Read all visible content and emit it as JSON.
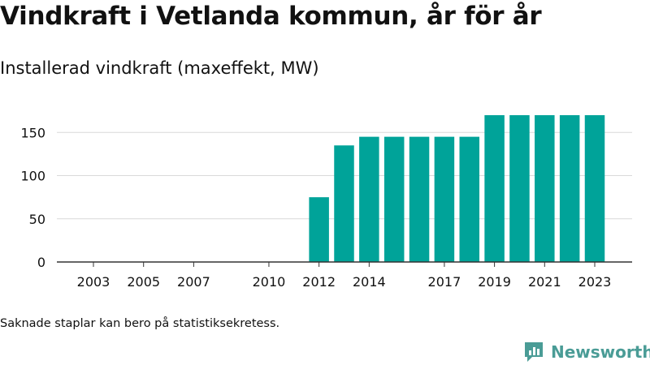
{
  "title": "Vindkraft i Vetlanda kommun, år för år",
  "subtitle": "Installerad vindkraft (maxeffekt, MW)",
  "footnote": "Saknade staplar kan bero på statistiksekretess.",
  "brand": {
    "name": "Newsworthy",
    "icon": "newsworthy-logo-icon",
    "color": "#4a9c96"
  },
  "chart_data": {
    "type": "bar",
    "bar_color": "#00a399",
    "x": [
      2003,
      2004,
      2005,
      2006,
      2007,
      2008,
      2009,
      2010,
      2011,
      2012,
      2013,
      2014,
      2015,
      2016,
      2017,
      2018,
      2019,
      2020,
      2021,
      2022,
      2023
    ],
    "values": [
      0,
      0,
      0,
      0,
      0,
      0,
      0,
      0,
      0,
      75,
      135,
      145,
      145,
      145,
      145,
      145,
      170,
      170,
      170,
      170,
      170
    ],
    "x_tick_labels": [
      2003,
      2005,
      2007,
      2010,
      2012,
      2014,
      2017,
      2019,
      2021,
      2023
    ],
    "y_ticks": [
      0,
      50,
      100,
      150
    ],
    "ylim": [
      0,
      170
    ],
    "grid": true
  }
}
